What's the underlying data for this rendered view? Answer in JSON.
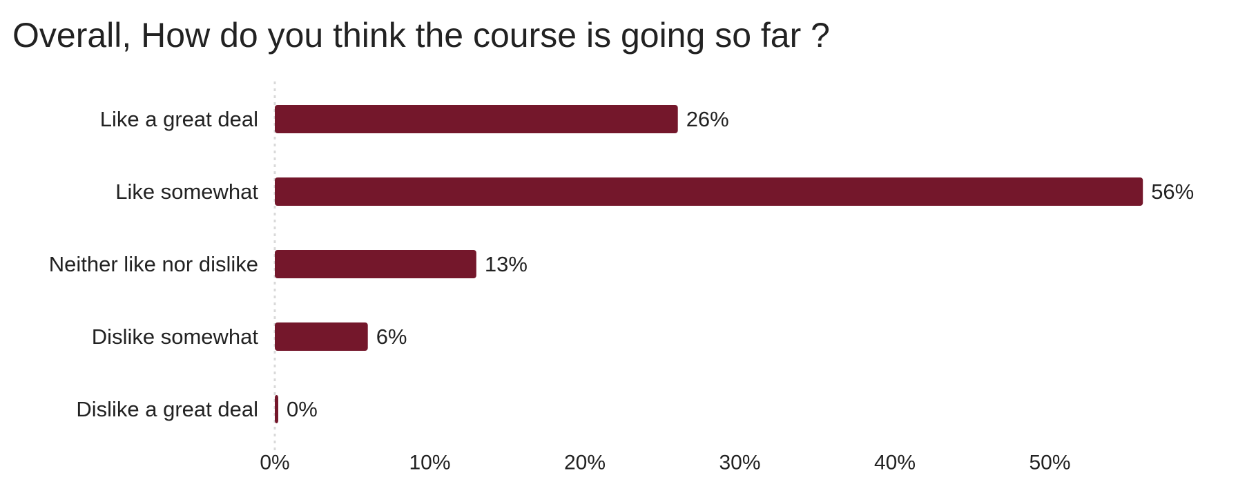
{
  "chart_data": {
    "type": "bar",
    "orientation": "horizontal",
    "title": "Overall, How do you think the course is going so far ?",
    "categories": [
      "Like a great deal",
      "Like somewhat",
      "Neither like nor dislike",
      "Dislike somewhat",
      "Dislike a great deal"
    ],
    "values": [
      26,
      56,
      13,
      6,
      0
    ],
    "value_labels": [
      "26%",
      "56%",
      "13%",
      "6%",
      "0%"
    ],
    "xticks": [
      "0%",
      "10%",
      "20%",
      "30%",
      "40%",
      "50%"
    ],
    "xlim": [
      0,
      60
    ],
    "grid": false,
    "bar_color": "#74172b"
  }
}
